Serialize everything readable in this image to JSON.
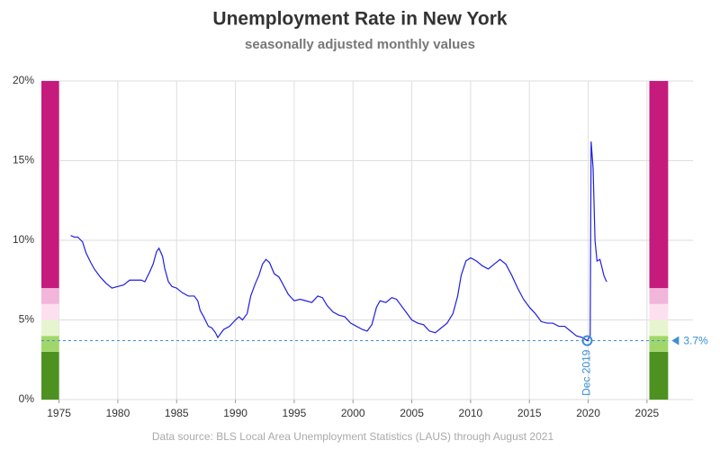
{
  "chart_data": {
    "type": "line",
    "title": "Unemployment Rate in New York",
    "subtitle": "seasonally adjusted monthly values",
    "source": "Data source: BLS Local Area Unemployment Statistics (LAUS) through August 2021",
    "xlim": [
      1973.5,
      2027
    ],
    "ylim": [
      0,
      20
    ],
    "xticks": [
      1975,
      1980,
      1985,
      1990,
      1995,
      2000,
      2005,
      2010,
      2015,
      2020,
      2025
    ],
    "yticks": [
      {
        "value": 0,
        "label": "0%"
      },
      {
        "value": 5,
        "label": "5%"
      },
      {
        "value": 10,
        "label": "10%"
      },
      {
        "value": 15,
        "label": "15%"
      },
      {
        "value": 20,
        "label": "20%"
      }
    ],
    "grid": true,
    "bands": [
      {
        "from": 0,
        "to": 3,
        "color": "#4d9221"
      },
      {
        "from": 3,
        "to": 4,
        "color": "#a1d76a"
      },
      {
        "from": 4,
        "to": 5,
        "color": "#e6f5d0"
      },
      {
        "from": 5,
        "to": 6,
        "color": "#fde0ef"
      },
      {
        "from": 6,
        "to": 7,
        "color": "#f1b6da"
      },
      {
        "from": 7,
        "to": 20,
        "color": "#c51b7d"
      }
    ],
    "reference": {
      "x": 2019.917,
      "value": 3.7,
      "label": "3.7%",
      "x_label": "Dec 2019",
      "color": "#3a8fd8"
    },
    "series": [
      {
        "color": "#1f1fe0",
        "x": [
          1976.0,
          1976.3,
          1976.6,
          1977.0,
          1977.3,
          1977.7,
          1978.0,
          1978.5,
          1979.0,
          1979.5,
          1980.0,
          1980.5,
          1981.0,
          1981.5,
          1982.0,
          1982.3,
          1982.7,
          1983.0,
          1983.3,
          1983.5,
          1983.8,
          1984.0,
          1984.3,
          1984.6,
          1985.0,
          1985.5,
          1986.0,
          1986.5,
          1986.8,
          1987.0,
          1987.3,
          1987.7,
          1988.0,
          1988.3,
          1988.5,
          1988.8,
          1989.0,
          1989.5,
          1990.0,
          1990.3,
          1990.6,
          1991.0,
          1991.3,
          1991.7,
          1992.0,
          1992.3,
          1992.6,
          1992.9,
          1993.3,
          1993.7,
          1994.0,
          1994.5,
          1995.0,
          1995.5,
          1996.0,
          1996.5,
          1997.0,
          1997.4,
          1997.8,
          1998.3,
          1998.8,
          1999.3,
          1999.8,
          2000.3,
          2000.8,
          2001.2,
          2001.6,
          2002.0,
          2002.3,
          2002.8,
          2003.3,
          2003.7,
          2004.0,
          2004.5,
          2005.0,
          2005.5,
          2006.0,
          2006.5,
          2007.0,
          2007.5,
          2008.0,
          2008.5,
          2008.9,
          2009.2,
          2009.6,
          2010.0,
          2010.5,
          2011.0,
          2011.5,
          2012.0,
          2012.5,
          2013.0,
          2013.5,
          2014.0,
          2014.5,
          2015.0,
          2015.5,
          2016.0,
          2016.5,
          2017.0,
          2017.5,
          2018.0,
          2018.5,
          2019.0,
          2019.5,
          2019.917,
          2020.17,
          2020.25,
          2020.42,
          2020.58,
          2020.75,
          2021.0,
          2021.17,
          2021.33,
          2021.5,
          2021.58
        ],
        "values": [
          10.3,
          10.2,
          10.2,
          9.9,
          9.2,
          8.6,
          8.2,
          7.7,
          7.3,
          7.0,
          7.1,
          7.2,
          7.5,
          7.5,
          7.5,
          7.4,
          8.0,
          8.5,
          9.3,
          9.5,
          9.0,
          8.2,
          7.4,
          7.1,
          7.0,
          6.7,
          6.5,
          6.5,
          6.2,
          5.6,
          5.2,
          4.6,
          4.5,
          4.2,
          3.9,
          4.2,
          4.4,
          4.6,
          5.0,
          5.2,
          5.0,
          5.4,
          6.5,
          7.3,
          7.8,
          8.5,
          8.8,
          8.6,
          7.9,
          7.7,
          7.3,
          6.6,
          6.2,
          6.3,
          6.2,
          6.1,
          6.5,
          6.4,
          5.9,
          5.5,
          5.3,
          5.2,
          4.8,
          4.6,
          4.4,
          4.3,
          4.7,
          5.8,
          6.2,
          6.1,
          6.4,
          6.3,
          6.0,
          5.5,
          5.0,
          4.8,
          4.7,
          4.3,
          4.2,
          4.5,
          4.8,
          5.4,
          6.5,
          7.8,
          8.7,
          8.9,
          8.7,
          8.4,
          8.2,
          8.5,
          8.8,
          8.5,
          7.8,
          7.0,
          6.3,
          5.8,
          5.4,
          4.9,
          4.8,
          4.8,
          4.6,
          4.6,
          4.3,
          4.0,
          3.9,
          3.7,
          4.0,
          16.2,
          14.5,
          10.0,
          8.7,
          8.8,
          8.3,
          7.8,
          7.5,
          7.4
        ]
      }
    ]
  }
}
